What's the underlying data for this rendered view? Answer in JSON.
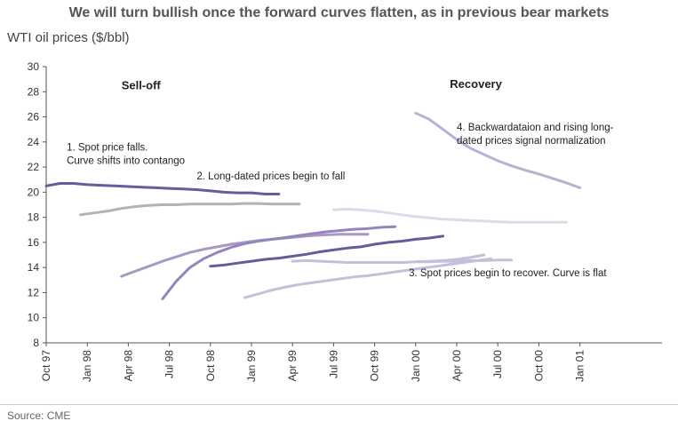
{
  "chart_data": {
    "type": "line",
    "title": "We will turn bullish once the forward curves flatten, as in previous bear markets",
    "ylabel": "WTI oil prices ($/bbl)",
    "source": "Source: CME",
    "ylim": [
      8,
      30
    ],
    "yticks": [
      8,
      10,
      12,
      14,
      16,
      18,
      20,
      22,
      24,
      26,
      28,
      30
    ],
    "xlim": [
      0,
      45
    ],
    "xtick_positions": [
      0,
      3,
      6,
      9,
      12,
      15,
      18,
      21,
      24,
      27,
      30,
      33,
      36,
      39
    ],
    "xtick_labels": [
      "Oct 97",
      "Jan 98",
      "Apr 98",
      "Jul 98",
      "Oct 98",
      "Jan 99",
      "Apr 99",
      "Jul 99",
      "Oct 99",
      "Jan 00",
      "Apr 00",
      "Jul 00",
      "Oct 00",
      "Jan 01"
    ],
    "section_labels": [
      {
        "text": "Sell-off",
        "x": 5.5,
        "y": 28.2
      },
      {
        "text": "Recovery",
        "x": 29.5,
        "y": 28.3
      }
    ],
    "annotations": [
      {
        "lines": [
          "1. Spot price falls.",
          "Curve shifts into contango"
        ],
        "x": 1.5,
        "y": 23.3
      },
      {
        "lines": [
          "2. Long-dated prices begin to fall"
        ],
        "x": 11,
        "y": 21.0
      },
      {
        "lines": [
          "3. Spot prices begin to recover. Curve is flat"
        ],
        "x": 26.5,
        "y": 13.3
      },
      {
        "lines": [
          "4. Backwardataion and rising long-",
          "dated prices signal normalization"
        ],
        "x": 30,
        "y": 24.9
      }
    ],
    "series": [
      {
        "name": "curve-oct97",
        "color": "#6b5a99",
        "width": 3,
        "x": [
          0,
          1,
          2,
          3,
          4,
          5,
          6,
          7,
          8,
          9,
          10,
          11,
          12,
          13,
          14,
          15,
          16,
          17
        ],
        "y": [
          20.5,
          20.7,
          20.7,
          20.6,
          20.55,
          20.5,
          20.45,
          20.4,
          20.35,
          20.3,
          20.25,
          20.2,
          20.1,
          20.0,
          19.95,
          19.95,
          19.85,
          19.85
        ]
      },
      {
        "name": "curve-jan98",
        "color": "#b2b2b8",
        "width": 3,
        "x": [
          2.5,
          3.5,
          4.5,
          5.5,
          6.5,
          7.5,
          8.5,
          9.5,
          10.5,
          11.5,
          12.5,
          13.5,
          14.5,
          15.5,
          16.5,
          17.5,
          18.5
        ],
        "y": [
          18.2,
          18.35,
          18.5,
          18.7,
          18.85,
          18.95,
          19.0,
          19.0,
          19.05,
          19.05,
          19.05,
          19.05,
          19.1,
          19.1,
          19.05,
          19.05,
          19.05
        ]
      },
      {
        "name": "curve-apr98",
        "color": "#a898c2",
        "width": 3,
        "x": [
          5.5,
          6.5,
          7.5,
          8.5,
          9.5,
          10.5,
          11.5,
          12.5,
          13.5,
          14.5,
          15.5,
          16.5,
          17.5,
          18.5,
          19.5,
          20.5,
          21.5,
          22.5,
          23.5
        ],
        "y": [
          13.3,
          13.7,
          14.1,
          14.5,
          14.85,
          15.2,
          15.45,
          15.65,
          15.85,
          16.0,
          16.15,
          16.25,
          16.35,
          16.45,
          16.55,
          16.6,
          16.65,
          16.65,
          16.65
        ]
      },
      {
        "name": "curve-jul98",
        "color": "#9684bc",
        "width": 3,
        "x": [
          8.5,
          9.5,
          10.5,
          11.5,
          12.5,
          13.5,
          14.5,
          15.5,
          16.5,
          17.5,
          18.5,
          19.5,
          20.5,
          21.5,
          22.5,
          23.5,
          24.5,
          25.5
        ],
        "y": [
          11.5,
          12.9,
          14.0,
          14.7,
          15.2,
          15.6,
          15.9,
          16.1,
          16.25,
          16.4,
          16.55,
          16.7,
          16.85,
          16.95,
          17.05,
          17.1,
          17.2,
          17.25
        ]
      },
      {
        "name": "curve-oct98",
        "color": "#6b5a99",
        "width": 3,
        "x": [
          12,
          13,
          14,
          15,
          16,
          17,
          18,
          19,
          20,
          21,
          22,
          23,
          24,
          25,
          26,
          27,
          28,
          29
        ],
        "y": [
          14.1,
          14.2,
          14.35,
          14.5,
          14.65,
          14.75,
          14.9,
          15.05,
          15.25,
          15.4,
          15.55,
          15.65,
          15.85,
          16.0,
          16.1,
          16.25,
          16.35,
          16.5
        ]
      },
      {
        "name": "curve-jan99",
        "color": "#c6bedb",
        "width": 3,
        "x": [
          14.5,
          15.5,
          16.5,
          17.5,
          18.5,
          19.5,
          20.5,
          21.5,
          22.5,
          23.5,
          24.5,
          25.5,
          26.5,
          27.5,
          28.5,
          29.5,
          30.5,
          31.5,
          32.5
        ],
        "y": [
          11.6,
          11.9,
          12.2,
          12.45,
          12.65,
          12.8,
          12.95,
          13.1,
          13.25,
          13.35,
          13.5,
          13.65,
          13.8,
          13.95,
          14.1,
          14.25,
          14.4,
          14.55,
          14.7
        ]
      },
      {
        "name": "curve-apr99",
        "color": "#c6bedb",
        "width": 3,
        "x": [
          18,
          19,
          20,
          21,
          22,
          23,
          24,
          25,
          26,
          27,
          28,
          29,
          30,
          31,
          32
        ],
        "y": [
          14.5,
          14.55,
          14.5,
          14.45,
          14.4,
          14.4,
          14.4,
          14.4,
          14.4,
          14.45,
          14.5,
          14.55,
          14.65,
          14.8,
          15.0
        ]
      },
      {
        "name": "curve-jul99",
        "color": "#dddbe8",
        "width": 3,
        "x": [
          21,
          22,
          23,
          24,
          25,
          26,
          27,
          28,
          29,
          30,
          31,
          32,
          33,
          34,
          35,
          36,
          37,
          38
        ],
        "y": [
          18.6,
          18.65,
          18.6,
          18.5,
          18.35,
          18.2,
          18.05,
          17.95,
          17.85,
          17.8,
          17.75,
          17.7,
          17.65,
          17.6,
          17.6,
          17.6,
          17.6,
          17.6
        ]
      },
      {
        "name": "curve-oct99",
        "color": "#c6bedb",
        "width": 3,
        "x": [
          27,
          28,
          29,
          30,
          31,
          32,
          33,
          34
        ],
        "y": [
          14.45,
          14.45,
          14.5,
          14.5,
          14.55,
          14.55,
          14.6,
          14.6
        ]
      },
      {
        "name": "curve-jan00",
        "color": "#bbb0d4",
        "width": 3,
        "x": [
          27,
          28,
          29,
          30,
          31,
          32,
          33,
          34,
          35,
          36,
          37,
          38,
          39
        ],
        "y": [
          26.3,
          25.8,
          25.0,
          24.2,
          23.5,
          23.0,
          22.5,
          22.1,
          21.75,
          21.45,
          21.1,
          20.75,
          20.35
        ]
      }
    ]
  }
}
